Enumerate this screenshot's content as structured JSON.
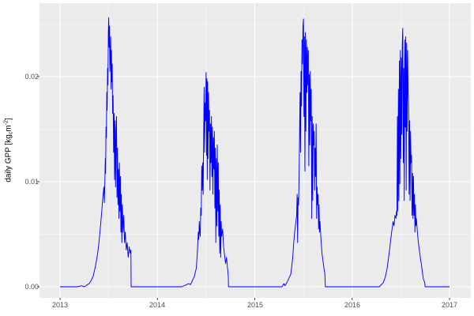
{
  "figure": {
    "background": "#FFFFFF"
  },
  "y_axis": {
    "title_parts": {
      "prefix": "daily GPP [kg",
      "sub": "c",
      "mid": "m",
      "sup": "-2",
      "suffix": "]"
    },
    "tick_labels": [
      "0.00",
      "0.01",
      "0.02"
    ]
  },
  "x_axis": {
    "tick_labels": [
      "2013",
      "2014",
      "2015",
      "2016",
      "2017"
    ]
  },
  "chart_data": {
    "type": "line",
    "title": "",
    "xlabel": "",
    "ylabel": "daily GPP [kg_c m^-2]",
    "legend": "none",
    "grid": "major+minor",
    "panel_bg": "#EBEBEB",
    "grid_color": "#FFFFFF",
    "tick_color": "#333333",
    "tick_label_color": "#4D4D4D",
    "line_color": "#0000FF",
    "xlim": [
      2012.789,
      2017.219
    ],
    "ylim": [
      -0.001053,
      0.026992
    ],
    "x_ticks": [
      2013,
      2014,
      2015,
      2016,
      2017
    ],
    "x_minor_ticks": [
      2013.5,
      2014.5,
      2015.5,
      2016.5
    ],
    "y_ticks": [
      0.0,
      0.01,
      0.02
    ],
    "y_minor_ticks": [
      0.005,
      0.015,
      0.025
    ],
    "series": [
      {
        "name": "daily GPP",
        "points": [
          [
            2013.0,
            0
          ],
          [
            2013.18,
            0
          ],
          [
            2013.22,
            0.0001
          ],
          [
            2013.25,
            0
          ],
          [
            2013.28,
            0.0002
          ],
          [
            2013.3,
            0.0003
          ],
          [
            2013.32,
            0.0006
          ],
          [
            2013.34,
            0.001
          ],
          [
            2013.36,
            0.0018
          ],
          [
            2013.38,
            0.0028
          ],
          [
            2013.395,
            0.0038
          ],
          [
            2013.41,
            0.0052
          ],
          [
            2013.425,
            0.0068
          ],
          [
            2013.44,
            0.0085
          ],
          [
            2013.45,
            0.0095
          ],
          [
            2013.455,
            0.008
          ],
          [
            2013.46,
            0.0099
          ],
          [
            2013.465,
            0.0122
          ],
          [
            2013.468,
            0.0108
          ],
          [
            2013.472,
            0.0152
          ],
          [
            2013.476,
            0.0142
          ],
          [
            2013.48,
            0.0185
          ],
          [
            2013.484,
            0.0168
          ],
          [
            2013.488,
            0.0208
          ],
          [
            2013.492,
            0.0192
          ],
          [
            2013.496,
            0.0242
          ],
          [
            2013.5,
            0.0256
          ],
          [
            2013.504,
            0.0228
          ],
          [
            2013.508,
            0.0248
          ],
          [
            2013.512,
            0.0205
          ],
          [
            2013.516,
            0.0222
          ],
          [
            2013.52,
            0.0238
          ],
          [
            2013.524,
            0.0188
          ],
          [
            2013.528,
            0.0225
          ],
          [
            2013.532,
            0.0195
          ],
          [
            2013.536,
            0.0212
          ],
          [
            2013.54,
            0.0165
          ],
          [
            2013.545,
            0.0182
          ],
          [
            2013.55,
            0.0128
          ],
          [
            2013.555,
            0.0165
          ],
          [
            2013.56,
            0.0102
          ],
          [
            2013.565,
            0.0158
          ],
          [
            2013.57,
            0.0095
          ],
          [
            2013.575,
            0.0148
          ],
          [
            2013.58,
            0.0162
          ],
          [
            2013.585,
            0.0085
          ],
          [
            2013.59,
            0.0132
          ],
          [
            2013.595,
            0.0078
          ],
          [
            2013.6,
            0.0112
          ],
          [
            2013.605,
            0.0065
          ],
          [
            2013.61,
            0.0118
          ],
          [
            2013.615,
            0.0072
          ],
          [
            2013.62,
            0.0105
          ],
          [
            2013.625,
            0.0052
          ],
          [
            2013.63,
            0.0088
          ],
          [
            2013.635,
            0.0042
          ],
          [
            2013.64,
            0.0078
          ],
          [
            2013.648,
            0.0052
          ],
          [
            2013.655,
            0.0068
          ],
          [
            2013.662,
            0.0042
          ],
          [
            2013.67,
            0.0052
          ],
          [
            2013.68,
            0.0035
          ],
          [
            2013.69,
            0.0042
          ],
          [
            2013.7,
            0.0028
          ],
          [
            2013.71,
            0.0038
          ],
          [
            2013.72,
            0.0032
          ],
          [
            2013.728,
            0.0035
          ],
          [
            2013.73,
            0
          ],
          [
            2013.8,
            0
          ],
          [
            2014.0,
            0
          ],
          [
            2014.25,
            0
          ],
          [
            2014.3,
            0.0002
          ],
          [
            2014.32,
            0.0003
          ],
          [
            2014.34,
            0.0002
          ],
          [
            2014.36,
            0.0006
          ],
          [
            2014.38,
            0.001
          ],
          [
            2014.4,
            0.0018
          ],
          [
            2014.41,
            0.0032
          ],
          [
            2014.42,
            0.0052
          ],
          [
            2014.425,
            0.0045
          ],
          [
            2014.43,
            0.0062
          ],
          [
            2014.435,
            0.0052
          ],
          [
            2014.44,
            0.0048
          ],
          [
            2014.445,
            0.0075
          ],
          [
            2014.45,
            0.0068
          ],
          [
            2014.455,
            0.0115
          ],
          [
            2014.46,
            0.0092
          ],
          [
            2014.465,
            0.0118
          ],
          [
            2014.47,
            0.0088
          ],
          [
            2014.475,
            0.0145
          ],
          [
            2014.48,
            0.019
          ],
          [
            2014.485,
            0.0128
          ],
          [
            2014.49,
            0.0175
          ],
          [
            2014.495,
            0.0158
          ],
          [
            2014.5,
            0.0204
          ],
          [
            2014.505,
            0.0125
          ],
          [
            2014.508,
            0.0198
          ],
          [
            2014.512,
            0.0102
          ],
          [
            2014.516,
            0.0195
          ],
          [
            2014.52,
            0.0122
          ],
          [
            2014.525,
            0.0185
          ],
          [
            2014.53,
            0.0148
          ],
          [
            2014.535,
            0.0168
          ],
          [
            2014.54,
            0.0092
          ],
          [
            2014.545,
            0.0155
          ],
          [
            2014.55,
            0.0118
          ],
          [
            2014.555,
            0.0162
          ],
          [
            2014.56,
            0.0105
          ],
          [
            2014.565,
            0.0152
          ],
          [
            2014.57,
            0.0088
          ],
          [
            2014.575,
            0.0142
          ],
          [
            2014.58,
            0.0112
          ],
          [
            2014.585,
            0.0148
          ],
          [
            2014.59,
            0.0075
          ],
          [
            2014.595,
            0.0132
          ],
          [
            2014.6,
            0.0042
          ],
          [
            2014.605,
            0.0122
          ],
          [
            2014.61,
            0.0058
          ],
          [
            2014.615,
            0.0135
          ],
          [
            2014.62,
            0.0072
          ],
          [
            2014.625,
            0.0118
          ],
          [
            2014.63,
            0.0048
          ],
          [
            2014.635,
            0.0092
          ],
          [
            2014.64,
            0.0032
          ],
          [
            2014.645,
            0.0078
          ],
          [
            2014.65,
            0.0028
          ],
          [
            2014.655,
            0.0062
          ],
          [
            2014.66,
            0.0048
          ],
          [
            2014.67,
            0.0055
          ],
          [
            2014.68,
            0.0038
          ],
          [
            2014.69,
            0.003
          ],
          [
            2014.7,
            0.0022
          ],
          [
            2014.71,
            0.0028
          ],
          [
            2014.72,
            0.0018
          ],
          [
            2014.728,
            0.001
          ],
          [
            2014.73,
            0
          ],
          [
            2014.8,
            0
          ],
          [
            2015.0,
            0
          ],
          [
            2015.28,
            0
          ],
          [
            2015.3,
            0.0003
          ],
          [
            2015.31,
            0.0001
          ],
          [
            2015.33,
            0.0004
          ],
          [
            2015.35,
            0.0008
          ],
          [
            2015.37,
            0.0012
          ],
          [
            2015.39,
            0.0028
          ],
          [
            2015.4,
            0.0042
          ],
          [
            2015.41,
            0.0052
          ],
          [
            2015.42,
            0.006
          ],
          [
            2015.43,
            0.0068
          ],
          [
            2015.435,
            0.0088
          ],
          [
            2015.44,
            0.0042
          ],
          [
            2015.445,
            0.0085
          ],
          [
            2015.45,
            0.0078
          ],
          [
            2015.455,
            0.0105
          ],
          [
            2015.46,
            0.0145
          ],
          [
            2015.465,
            0.0185
          ],
          [
            2015.47,
            0.0128
          ],
          [
            2015.475,
            0.0205
          ],
          [
            2015.48,
            0.0172
          ],
          [
            2015.485,
            0.0235
          ],
          [
            2015.49,
            0.0212
          ],
          [
            2015.495,
            0.0248
          ],
          [
            2015.5,
            0.0255
          ],
          [
            2015.505,
            0.0162
          ],
          [
            2015.51,
            0.0238
          ],
          [
            2015.515,
            0.011
          ],
          [
            2015.52,
            0.0242
          ],
          [
            2015.525,
            0.0148
          ],
          [
            2015.53,
            0.0235
          ],
          [
            2015.535,
            0.0185
          ],
          [
            2015.54,
            0.0228
          ],
          [
            2015.545,
            0.0192
          ],
          [
            2015.55,
            0.0225
          ],
          [
            2015.555,
            0.0115
          ],
          [
            2015.56,
            0.0202
          ],
          [
            2015.565,
            0.0135
          ],
          [
            2015.57,
            0.0205
          ],
          [
            2015.575,
            0.0158
          ],
          [
            2015.58,
            0.0188
          ],
          [
            2015.585,
            0.0065
          ],
          [
            2015.59,
            0.0162
          ],
          [
            2015.595,
            0.0082
          ],
          [
            2015.6,
            0.0155
          ],
          [
            2015.605,
            0.0135
          ],
          [
            2015.61,
            0.0148
          ],
          [
            2015.615,
            0.0092
          ],
          [
            2015.62,
            0.0132
          ],
          [
            2015.625,
            0.0105
          ],
          [
            2015.63,
            0.0155
          ],
          [
            2015.635,
            0.0065
          ],
          [
            2015.64,
            0.0095
          ],
          [
            2015.645,
            0.0078
          ],
          [
            2015.65,
            0.0088
          ],
          [
            2015.655,
            0.0055
          ],
          [
            2015.66,
            0.0078
          ],
          [
            2015.665,
            0.0052
          ],
          [
            2015.67,
            0.0062
          ],
          [
            2015.68,
            0.0045
          ],
          [
            2015.69,
            0.0032
          ],
          [
            2015.7,
            0.0025
          ],
          [
            2015.71,
            0.0018
          ],
          [
            2015.72,
            0.0012
          ],
          [
            2015.725,
            0
          ],
          [
            2015.8,
            0
          ],
          [
            2016.0,
            0
          ],
          [
            2016.28,
            0
          ],
          [
            2016.3,
            0.0002
          ],
          [
            2016.32,
            0.0004
          ],
          [
            2016.34,
            0.0009
          ],
          [
            2016.36,
            0.0018
          ],
          [
            2016.38,
            0.0032
          ],
          [
            2016.4,
            0.0048
          ],
          [
            2016.41,
            0.0055
          ],
          [
            2016.42,
            0.0062
          ],
          [
            2016.43,
            0.0058
          ],
          [
            2016.44,
            0.0068
          ],
          [
            2016.45,
            0.0065
          ],
          [
            2016.455,
            0.0072
          ],
          [
            2016.46,
            0.0068
          ],
          [
            2016.465,
            0.0162
          ],
          [
            2016.47,
            0.0072
          ],
          [
            2016.475,
            0.0188
          ],
          [
            2016.48,
            0.0082
          ],
          [
            2016.485,
            0.0215
          ],
          [
            2016.49,
            0.0098
          ],
          [
            2016.495,
            0.0225
          ],
          [
            2016.5,
            0.0122
          ],
          [
            2016.505,
            0.0218
          ],
          [
            2016.51,
            0.0145
          ],
          [
            2016.515,
            0.0232
          ],
          [
            2016.52,
            0.0246
          ],
          [
            2016.525,
            0.0118
          ],
          [
            2016.53,
            0.0208
          ],
          [
            2016.535,
            0.0082
          ],
          [
            2016.54,
            0.0235
          ],
          [
            2016.545,
            0.0152
          ],
          [
            2016.55,
            0.0238
          ],
          [
            2016.555,
            0.0092
          ],
          [
            2016.56,
            0.0232
          ],
          [
            2016.565,
            0.0148
          ],
          [
            2016.57,
            0.0225
          ],
          [
            2016.575,
            0.0185
          ],
          [
            2016.58,
            0.0172
          ],
          [
            2016.585,
            0.0088
          ],
          [
            2016.59,
            0.0158
          ],
          [
            2016.595,
            0.0082
          ],
          [
            2016.6,
            0.0148
          ],
          [
            2016.605,
            0.0118
          ],
          [
            2016.61,
            0.0125
          ],
          [
            2016.615,
            0.0068
          ],
          [
            2016.62,
            0.0108
          ],
          [
            2016.625,
            0.0065
          ],
          [
            2016.63,
            0.0105
          ],
          [
            2016.635,
            0.0068
          ],
          [
            2016.64,
            0.0088
          ],
          [
            2016.645,
            0.0052
          ],
          [
            2016.65,
            0.0078
          ],
          [
            2016.655,
            0.0058
          ],
          [
            2016.66,
            0.0065
          ],
          [
            2016.67,
            0.0052
          ],
          [
            2016.68,
            0.0042
          ],
          [
            2016.69,
            0.0035
          ],
          [
            2016.7,
            0.0028
          ],
          [
            2016.71,
            0.0022
          ],
          [
            2016.72,
            0.0015
          ],
          [
            2016.73,
            0.0008
          ],
          [
            2016.745,
            0.0004
          ],
          [
            2016.75,
            0
          ],
          [
            2016.85,
            0
          ],
          [
            2017.0,
            0
          ]
        ]
      }
    ]
  }
}
